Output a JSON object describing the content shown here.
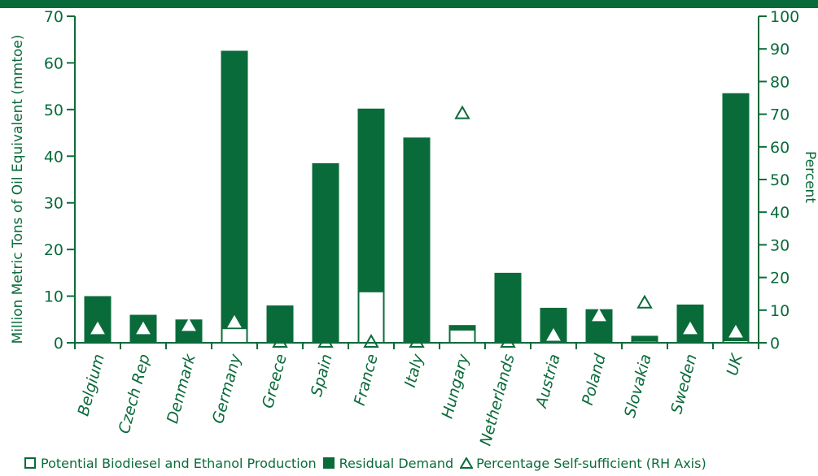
{
  "colors": {
    "primary": "#0a6b3a",
    "background": "#ffffff",
    "open_bar": "#ffffff"
  },
  "chart_data": {
    "type": "bar",
    "stacked": true,
    "categories": [
      "Belgium",
      "Czech Rep",
      "Denmark",
      "Germany",
      "Greece",
      "Spain",
      "France",
      "Italy",
      "Hungary",
      "Netherlands",
      "Austria",
      "Poland",
      "Slovakia",
      "Sweden",
      "UK"
    ],
    "series": [
      {
        "name": "Potential Biodiesel and Ethanol Production",
        "style": "open",
        "axis": "left",
        "values": [
          0,
          0,
          0,
          3.1,
          0,
          0,
          11,
          0,
          2.8,
          0,
          0,
          0.3,
          0.4,
          0,
          0.5
        ]
      },
      {
        "name": "Residual Demand",
        "style": "solid",
        "axis": "left",
        "values": [
          10,
          6,
          5,
          59.5,
          8,
          38.5,
          39.2,
          44,
          1,
          15,
          7.5,
          6.9,
          1.1,
          8.2,
          53
        ]
      },
      {
        "name": "Percentage Self-sufficient (RH Axis)",
        "style": "triangle",
        "axis": "right",
        "values": [
          4,
          4,
          5,
          6,
          0,
          0,
          0,
          0,
          70,
          0,
          2,
          8,
          12,
          4,
          3
        ]
      }
    ],
    "ylabel": "Million Metric Tons of Oil Equivalent (mmtoe)",
    "y2label": "Percent",
    "ylim": [
      0,
      70
    ],
    "y2lim": [
      0,
      100
    ],
    "yticks": [
      0,
      10,
      20,
      30,
      40,
      50,
      60,
      70
    ],
    "y2ticks": [
      0,
      10,
      20,
      30,
      40,
      50,
      60,
      70,
      80,
      90,
      100
    ],
    "grid": false,
    "legend_position": "bottom"
  },
  "legend": {
    "items": [
      "Potential Biodiesel and Ethanol Production",
      "Residual Demand",
      "Percentage Self-sufficient (RH Axis)"
    ]
  }
}
